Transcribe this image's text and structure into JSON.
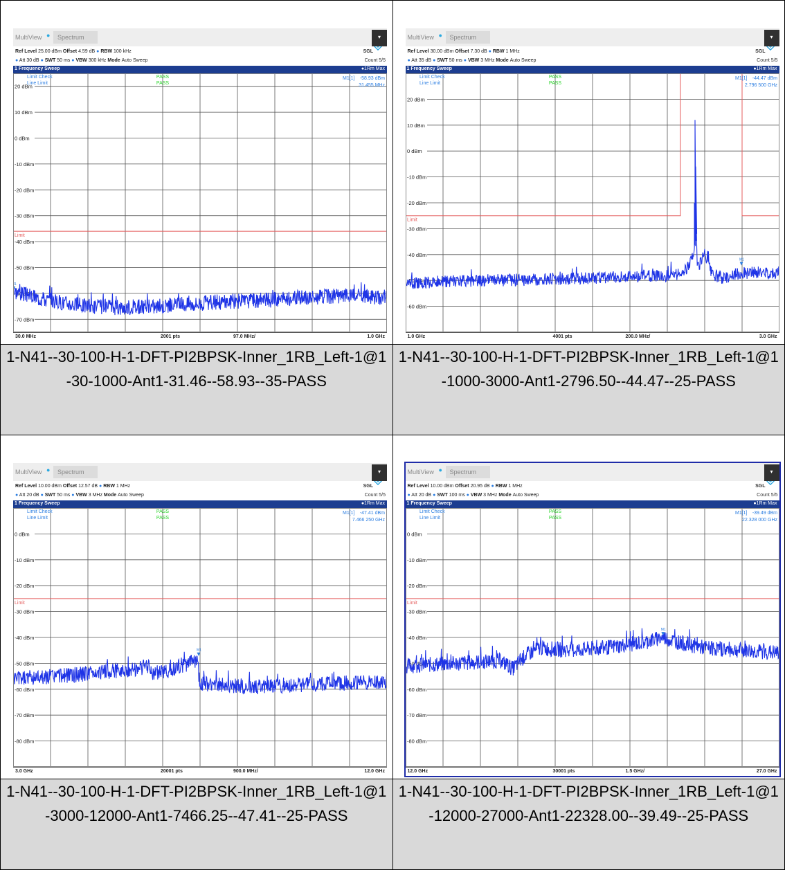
{
  "plots": [
    {
      "caption": "1-N41--30-100-H-1-DFT-PI2BPSK-Inner_1RB_Left-1@1-30-1000-Ant1-31.46--58.93--35-PASS",
      "selected": false,
      "tabs": [
        "MultiView",
        "Spectrum"
      ],
      "ref_level": "25.00 dBm",
      "offset": "4.59 dB",
      "rbw": "100 kHz",
      "att": "30 dB",
      "swt": "50 ms",
      "vbw": "300 kHz",
      "mode": "Auto Sweep",
      "sgl": "SGL",
      "count": "Count 5/5",
      "trace_title": "1 Frequency Sweep",
      "trace_mode": "1Rm Max",
      "limit_check_label": "Limit Check",
      "line_limit_label": "Line Limit",
      "pass1": "PASS",
      "pass2": "PASS",
      "marker_id": "M1[1]",
      "marker_level": "-58.93 dBm",
      "marker_freq": "31.455 MHz",
      "start": "30.0 MHz",
      "points": "2001 pts",
      "div": "97.0 MHz/",
      "stop": "1.0 GHz",
      "y_labels": [
        "20 dBm",
        "10 dBm",
        "0 dBm",
        "-10 dBm",
        "-20 dBm",
        "-30 dBm",
        "-40 dBm",
        "-50 dBm",
        "-60 dBm",
        "-70 dBm"
      ],
      "limit_tag": "Limit",
      "marker_tag": "M1",
      "chart_data": {
        "type": "line",
        "x_range": [
          30,
          1000
        ],
        "x_unit": "MHz",
        "y_top": 25,
        "y_unit": "dBm",
        "y_div": 10,
        "divisions": 10,
        "grid_first": 20,
        "limit": [
          [
            30,
            -36
          ],
          [
            1000,
            -36
          ]
        ],
        "trace": [
          [
            30,
            -59
          ],
          [
            100,
            -62
          ],
          [
            200,
            -64.5
          ],
          [
            300,
            -65.5
          ],
          [
            400,
            -65
          ],
          [
            500,
            -64
          ],
          [
            600,
            -63
          ],
          [
            700,
            -62.5
          ],
          [
            800,
            -61.5
          ],
          [
            900,
            -61
          ],
          [
            1000,
            -61.5
          ]
        ],
        "noise": 1.5,
        "peaks": [],
        "marker": [
          31.455,
          -58.93
        ],
        "label_y_offsets": {
          "20 dBm": 0
        }
      }
    },
    {
      "caption": "1-N41--30-100-H-1-DFT-PI2BPSK-Inner_1RB_Left-1@1-1000-3000-Ant1-2796.50--44.47--25-PASS",
      "selected": false,
      "tabs": [
        "MultiView",
        "Spectrum"
      ],
      "ref_level": "30.00 dBm",
      "offset": "7.30 dB",
      "rbw": "1 MHz",
      "att": "35 dB",
      "swt": "50 ms",
      "vbw": "3 MHz",
      "mode": "Auto Sweep",
      "sgl": "SGL",
      "count": "Count 5/5",
      "trace_title": "1 Frequency Sweep",
      "trace_mode": "1Rm Max",
      "limit_check_label": "Limit Check",
      "line_limit_label": "Line Limit",
      "pass1": "PASS",
      "pass2": "PASS",
      "marker_id": "M1[1]",
      "marker_level": "-44.47 dBm",
      "marker_freq": "2.796 500 GHz",
      "start": "1.0 GHz",
      "points": "4001 pts",
      "div": "200.0 MHz/",
      "stop": "3.0 GHz",
      "y_labels": [
        "20 dBm",
        "10 dBm",
        "0 dBm",
        "-10 dBm",
        "-20 dBm",
        "-30 dBm",
        "-40 dBm",
        "-50 dBm",
        "-60 dBm"
      ],
      "limit_tag": "Limit",
      "marker_tag": "M1",
      "chart_data": {
        "type": "line",
        "x_range": [
          1000,
          3000
        ],
        "x_unit": "MHz",
        "y_top": 30,
        "y_unit": "dBm",
        "y_div": 10,
        "divisions": 10,
        "grid_first": 20,
        "limit": [
          [
            1000,
            -25
          ],
          [
            2470,
            -25
          ],
          [
            2470,
            30
          ],
          [
            2800,
            30
          ],
          [
            2800,
            -25
          ],
          [
            3000,
            -25
          ]
        ],
        "trace": [
          [
            1000,
            -51
          ],
          [
            1400,
            -50
          ],
          [
            1800,
            -49.5
          ],
          [
            2200,
            -48.5
          ],
          [
            2450,
            -48
          ],
          [
            2500,
            -46
          ],
          [
            2540,
            -40
          ],
          [
            2555,
            -30
          ],
          [
            2560,
            -45
          ],
          [
            2600,
            -40
          ],
          [
            2640,
            -48
          ],
          [
            2700,
            -49
          ],
          [
            2800,
            -47
          ],
          [
            3000,
            -47
          ]
        ],
        "noise": 1.2,
        "peaks": [
          [
            2548,
            12
          ],
          [
            2552,
            -6
          ],
          [
            2545,
            -20
          ]
        ],
        "marker": [
          2796.5,
          -44.47
        ]
      }
    },
    {
      "caption": "1-N41--30-100-H-1-DFT-PI2BPSK-Inner_1RB_Left-1@1-3000-12000-Ant1-7466.25--47.41--25-PASS",
      "selected": false,
      "tabs": [
        "MultiView",
        "Spectrum"
      ],
      "ref_level": "10.00 dBm",
      "offset": "12.57 dB",
      "rbw": "1 MHz",
      "att": "20 dB",
      "swt": "50 ms",
      "vbw": "3 MHz",
      "mode": "Auto Sweep",
      "sgl": "SGL",
      "count": "Count 5/5",
      "trace_title": "1 Frequency Sweep",
      "trace_mode": "1Rm Max",
      "limit_check_label": "Limit Check",
      "line_limit_label": "Line Limit",
      "pass1": "PASS",
      "pass2": "PASS",
      "marker_id": "M1[1]",
      "marker_level": "-47.41 dBm",
      "marker_freq": "7.466 250 GHz",
      "start": "3.0 GHz",
      "points": "20001 pts",
      "div": "900.0 MHz/",
      "stop": "12.0 GHz",
      "y_labels": [
        "0 dBm",
        "-10 dBm",
        "-20 dBm",
        "-30 dBm",
        "-40 dBm",
        "-50 dBm",
        "-60 dBm",
        "-70 dBm",
        "-80 dBm"
      ],
      "limit_tag": "Limit",
      "marker_tag": "M1",
      "chart_data": {
        "type": "line",
        "x_range": [
          3000,
          12000
        ],
        "x_unit": "MHz",
        "y_top": 10,
        "y_unit": "dBm",
        "y_div": 10,
        "divisions": 10,
        "grid_first": 0,
        "limit": [
          [
            3000,
            -25
          ],
          [
            12000,
            -25
          ]
        ],
        "trace": [
          [
            3000,
            -56
          ],
          [
            4800,
            -54
          ],
          [
            6000,
            -52
          ],
          [
            6300,
            -51
          ],
          [
            6301,
            -54
          ],
          [
            6700,
            -53
          ],
          [
            7000,
            -51
          ],
          [
            7450,
            -49
          ],
          [
            7470,
            -55
          ],
          [
            7500,
            -58
          ],
          [
            9000,
            -59
          ],
          [
            10500,
            -58
          ],
          [
            12000,
            -57
          ]
        ],
        "noise": 1.5,
        "peaks": [],
        "marker": [
          7466.25,
          -47.41
        ]
      }
    },
    {
      "caption": "1-N41--30-100-H-1-DFT-PI2BPSK-Inner_1RB_Left-1@1-12000-27000-Ant1-22328.00--39.49--25-PASS",
      "selected": true,
      "tabs": [
        "MultiView",
        "Spectrum"
      ],
      "ref_level": "10.00 dBm",
      "offset": "20.95 dB",
      "rbw": "1 MHz",
      "att": "20 dB",
      "swt": "100 ms",
      "vbw": "3 MHz",
      "mode": "Auto Sweep",
      "sgl": "SGL",
      "count": "Count 5/5",
      "trace_title": "1 Frequency Sweep",
      "trace_mode": "1Rm Max",
      "limit_check_label": "Limit Check",
      "line_limit_label": "Line Limit",
      "pass1": "PASS",
      "pass2": "PASS",
      "marker_id": "M1[1]",
      "marker_level": "-39.49 dBm",
      "marker_freq": "22.328 000 GHz",
      "start": "12.0 GHz",
      "points": "30001 pts",
      "div": "1.5 GHz/",
      "stop": "27.0 GHz",
      "y_labels": [
        "0 dBm",
        "-10 dBm",
        "-20 dBm",
        "-30 dBm",
        "-40 dBm",
        "-50 dBm",
        "-60 dBm",
        "-70 dBm",
        "-80 dBm"
      ],
      "limit_tag": "Limit",
      "marker_tag": "M1",
      "chart_data": {
        "type": "line",
        "x_range": [
          12000,
          27000
        ],
        "x_unit": "MHz",
        "y_top": 10,
        "y_unit": "dBm",
        "y_div": 10,
        "divisions": 10,
        "grid_first": 0,
        "limit": [
          [
            12000,
            -25
          ],
          [
            27000,
            -25
          ]
        ],
        "trace": [
          [
            12000,
            -51
          ],
          [
            14000,
            -50
          ],
          [
            15800,
            -49
          ],
          [
            16300,
            -52
          ],
          [
            16800,
            -47
          ],
          [
            17400,
            -44
          ],
          [
            18500,
            -45
          ],
          [
            20000,
            -44
          ],
          [
            21500,
            -42
          ],
          [
            22330,
            -40
          ],
          [
            23000,
            -42
          ],
          [
            24000,
            -44
          ],
          [
            25500,
            -45
          ],
          [
            27000,
            -46
          ]
        ],
        "noise": 1.5,
        "peaks": [],
        "marker": [
          22328,
          -39.49
        ]
      }
    }
  ]
}
